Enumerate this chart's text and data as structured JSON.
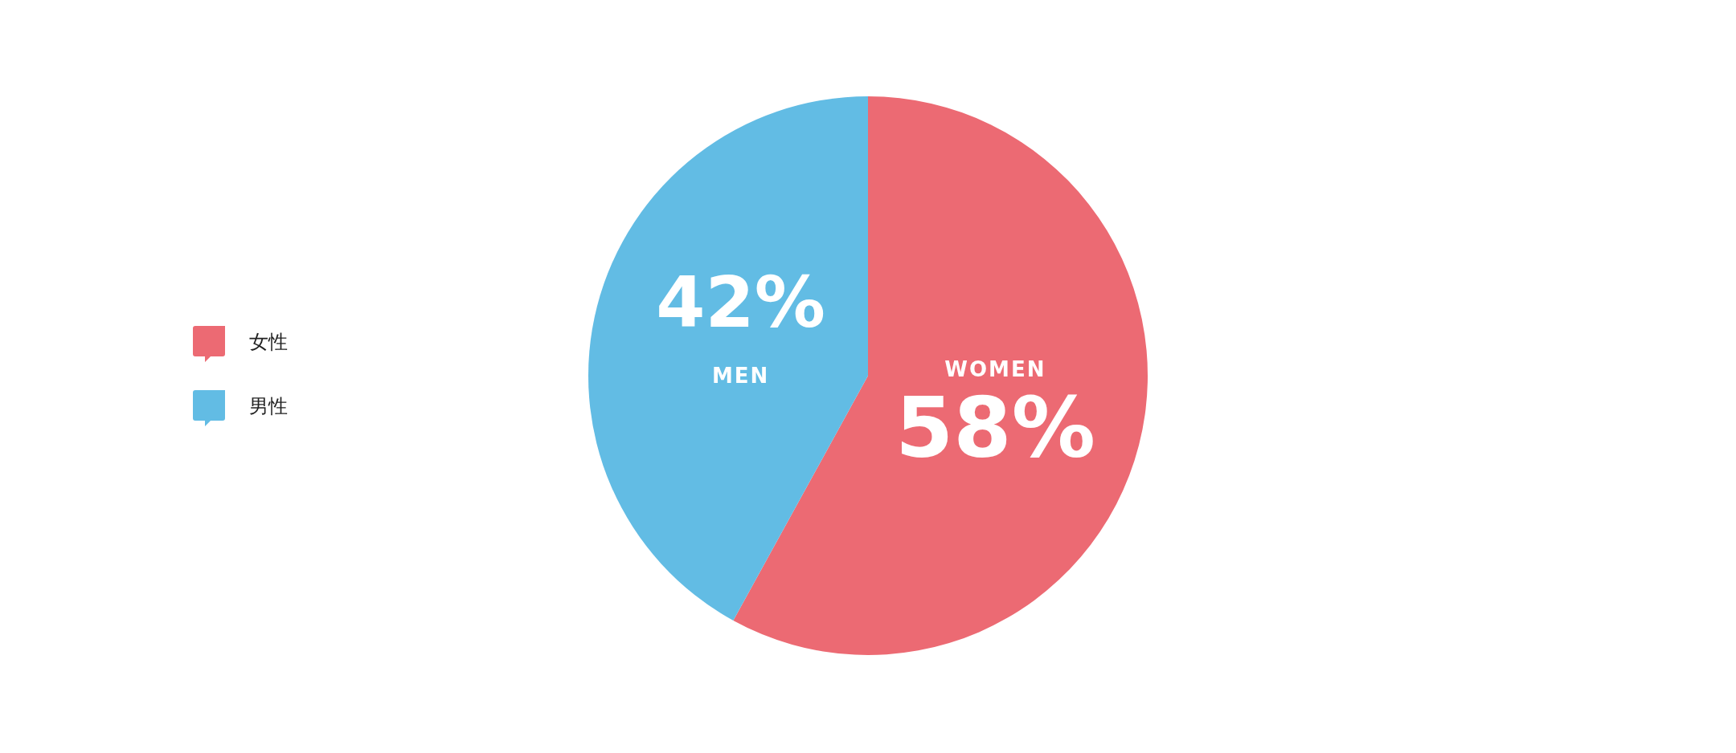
{
  "chart_data": {
    "type": "pie",
    "categories": [
      "女性",
      "男性"
    ],
    "values": [
      58,
      42
    ],
    "colors": [
      "#ec6a73",
      "#62bce4"
    ],
    "value_labels": [
      "58%",
      "42%"
    ],
    "annotations": [
      "WOMEN",
      "MEN"
    ],
    "legend": "left"
  }
}
